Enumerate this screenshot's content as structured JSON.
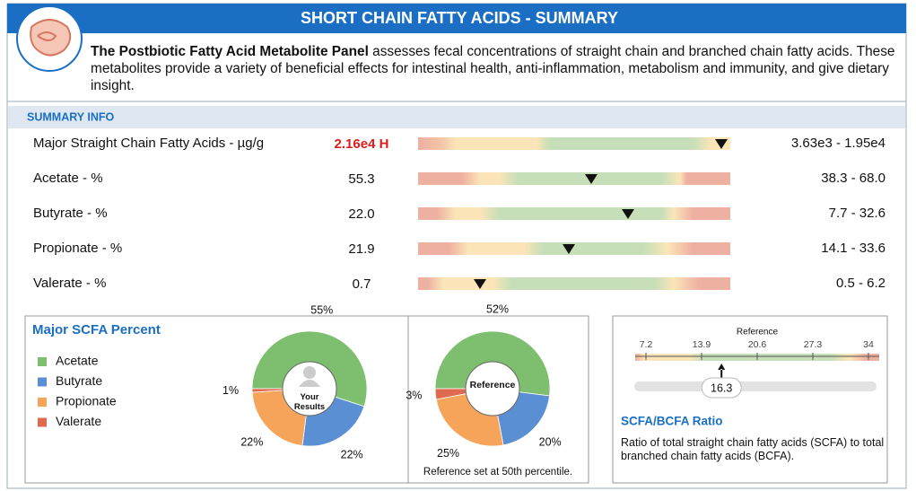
{
  "header": {
    "title": "SHORT CHAIN FATTY ACIDS - SUMMARY"
  },
  "intro": {
    "bold": "The Postbiotic Fatty Acid Metabolite Panel",
    "text": " assesses fecal concentrations of straight chain and branched chain fatty acids. These metabolites provide a variety of beneficial effects for intestinal health, anti-inflammation, metabolism and immunity, and give dietary insight."
  },
  "summary": {
    "title": "SUMMARY INFO",
    "rows": [
      {
        "label": "Major Straight Chain Fatty Acids - µg/g",
        "value": "2.16e4 H",
        "range": "3.63e3 - 1.95e4"
      },
      {
        "label": "Acetate - %",
        "value": "55.3",
        "range": "38.3 - 68.0"
      },
      {
        "label": "Butyrate - %",
        "value": "22.0",
        "range": "7.7 - 32.6"
      },
      {
        "label": "Propionate - %",
        "value": "21.9",
        "range": "14.1 - 33.6"
      },
      {
        "label": "Valerate - %",
        "value": "0.7",
        "range": "0.5 - 6.2"
      }
    ]
  },
  "scfa": {
    "title": "Major SCFA Percent"
  },
  "chart_data": [
    {
      "type": "pie",
      "center_label": "Your Results",
      "categories": [
        "Acetate",
        "Butyrate",
        "Propionate",
        "Valerate"
      ],
      "colors": [
        "#7dbf6e",
        "#5b8fd3",
        "#f5a45a",
        "#e06a4f"
      ],
      "values": [
        55,
        22,
        22,
        1
      ],
      "value_labels": [
        "55%",
        "22%",
        "22%",
        "1%"
      ]
    },
    {
      "type": "pie",
      "center_label": "Reference",
      "colors": [
        "#7dbf6e",
        "#5b8fd3",
        "#f5a45a",
        "#e06a4f"
      ],
      "values": [
        52,
        20,
        25,
        3
      ],
      "value_labels": [
        "52%",
        "20%",
        "25%",
        "3%"
      ],
      "note": "Reference set at 50th percentile."
    },
    {
      "type": "gauge",
      "subtitle": "Reference",
      "xlim": [
        7.2,
        34
      ],
      "xticks": [
        7.2,
        13.9,
        20.6,
        27.3,
        34
      ],
      "value": 16.3,
      "title": "SCFA/BCFA Ratio",
      "description": "Ratio of total straight chain fatty acids (SCFA) to total branched chain fatty acids (BCFA)."
    }
  ]
}
